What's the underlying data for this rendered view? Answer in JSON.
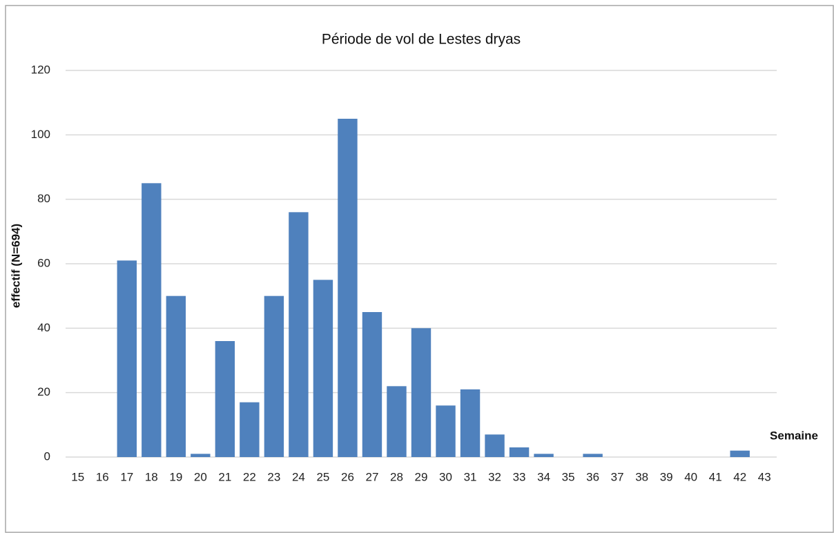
{
  "chart_data": {
    "type": "bar",
    "title": "Période de vol de Lestes dryas",
    "x_label": "Semaine",
    "y_label": "effectif (N=694)",
    "categories": [
      "15",
      "16",
      "17",
      "18",
      "19",
      "20",
      "21",
      "22",
      "23",
      "24",
      "25",
      "26",
      "27",
      "28",
      "29",
      "30",
      "31",
      "32",
      "33",
      "34",
      "35",
      "36",
      "37",
      "38",
      "39",
      "40",
      "41",
      "42",
      "43"
    ],
    "values": [
      0,
      0,
      61,
      85,
      50,
      1,
      36,
      17,
      50,
      76,
      55,
      105,
      45,
      22,
      40,
      16,
      21,
      7,
      3,
      1,
      0,
      1,
      0,
      0,
      0,
      0,
      0,
      2,
      0
    ],
    "color": "#4f81bd",
    "ylim": [
      0,
      120
    ],
    "yticks": [
      0,
      20,
      40,
      60,
      80,
      100,
      120
    ],
    "grid": true
  }
}
